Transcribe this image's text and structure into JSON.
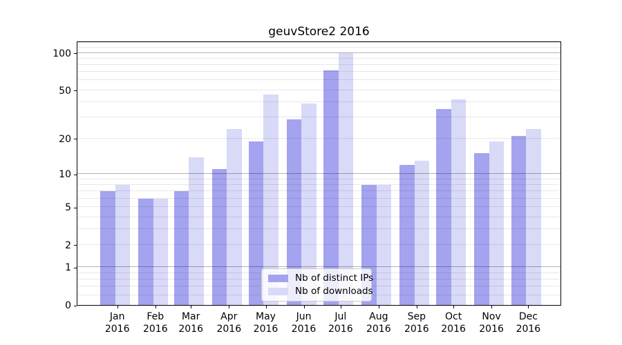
{
  "chart_data": {
    "type": "bar",
    "title": "geuvStore2 2016",
    "categories": [
      "Jan",
      "Feb",
      "Mar",
      "Apr",
      "May",
      "Jun",
      "Jul",
      "Aug",
      "Sep",
      "Oct",
      "Nov",
      "Dec"
    ],
    "year_label": "2016",
    "series": [
      {
        "name": "Nb of distinct IPs",
        "color": "#a3a3ef",
        "values": [
          7,
          6,
          7,
          11,
          19,
          29,
          72,
          8,
          12,
          35,
          15,
          21
        ]
      },
      {
        "name": "Nb of downloads",
        "color": "#d9d9f8",
        "values": [
          8,
          6,
          14,
          24,
          46,
          39,
          100,
          8,
          13,
          42,
          19,
          24
        ]
      }
    ],
    "xlabel": "",
    "ylabel": "",
    "yscale": "log1p",
    "ylim": [
      0,
      125
    ],
    "yticks": [
      0,
      1,
      2,
      5,
      10,
      20,
      50,
      100
    ],
    "grid": {
      "on": true,
      "major_at": [
        1,
        10,
        100
      ],
      "minor": "log-subdecades",
      "drawn_over_bars": true
    },
    "legend_position": "lower center",
    "colors": {
      "background": "#ffffff",
      "spine": "#000000",
      "major_grid": "#b8b8b8",
      "minor_grid": "#e8e8e8"
    }
  }
}
